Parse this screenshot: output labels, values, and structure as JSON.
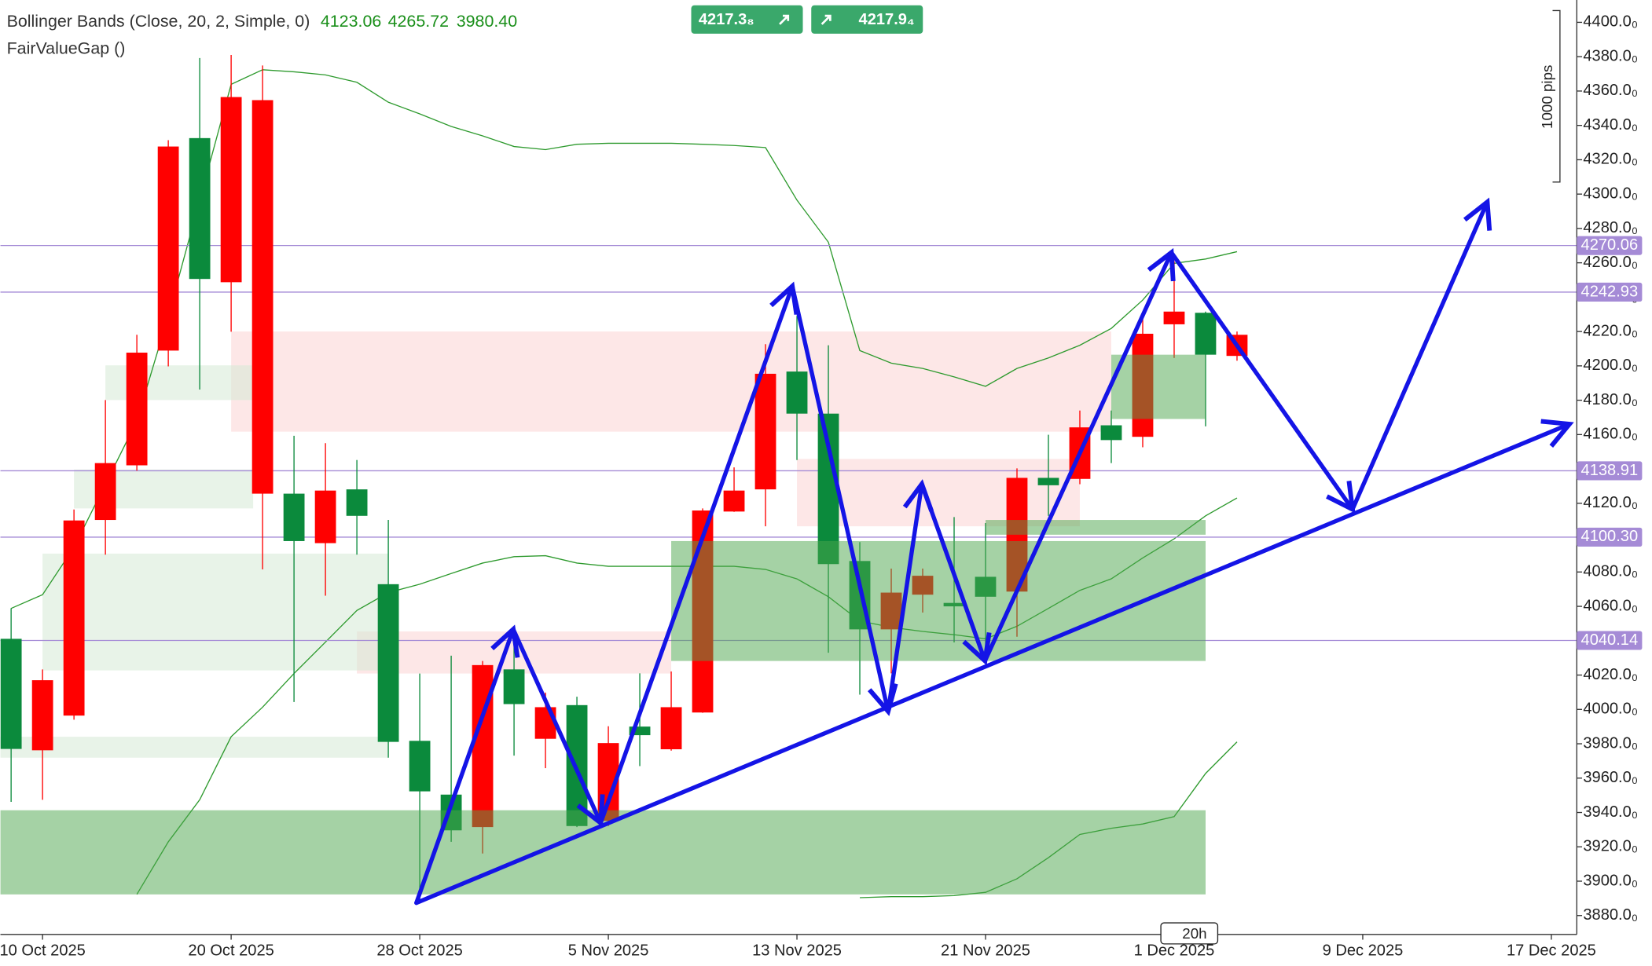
{
  "chart_data": {
    "type": "candlestick",
    "indicator_label": "Bollinger Bands (Close, 20, 2, Simple, 0)",
    "indicator_values": [
      "4123.06",
      "4265.72",
      "3980.40"
    ],
    "indicator2_label": "FairValueGap ()",
    "sell_price": "4217.3₈",
    "buy_price": "4217.9₄",
    "range_label": "1000 pips",
    "timeframe": "20h",
    "up_color": "#0b8a3c",
    "down_color": "#ff0000",
    "x": [
      -1,
      0,
      1,
      2,
      3,
      4,
      5,
      6,
      7,
      8,
      9,
      10,
      11,
      12,
      13,
      14,
      15,
      16,
      17,
      18,
      19,
      20,
      21,
      22,
      23,
      24,
      25,
      26,
      27,
      28,
      29,
      30,
      31,
      32,
      33,
      34,
      35,
      36,
      37,
      38
    ],
    "open": [
      3977,
      4017,
      4110,
      4143.4,
      4207.7,
      4327.7,
      4250.6,
      4356.5,
      4354.7,
      4098.0,
      4127.4,
      4112.7,
      3981.1,
      3952.3,
      3929.6,
      4025.8,
      4003.1,
      4001.3,
      3932.1,
      3980.4,
      3985,
      4001.3,
      4115.8,
      4127.4,
      4195.4,
      4172.2,
      4084.6,
      4046.6,
      4068.0,
      4077.8,
      4060,
      4065.6,
      4134.8,
      4130.5,
      4164.2,
      4156.8,
      4218.7,
      4231.6,
      4206.5,
      4218.1
    ],
    "high": [
      4058.9,
      4023.3,
      4116.4,
      4180.1,
      4218.1,
      4331.4,
      4379.2,
      4381,
      4374.9,
      4159.3,
      4155,
      4145.2,
      4110.3,
      4020.9,
      4031.3,
      4028.2,
      4045.4,
      4009.8,
      4007.4,
      3990.2,
      4021,
      4022.1,
      4117,
      4140.9,
      4212.6,
      4229.1,
      4212,
      4097.4,
      4082,
      4082,
      4112,
      4108.5,
      4140.3,
      4159.9,
      4174,
      4174,
      4229.1,
      4261,
      4231.6,
      4220
    ],
    "low": [
      3946.2,
      3947.4,
      3994,
      4090.1,
      4139,
      4199.7,
      4186.2,
      4219.9,
      4081.5,
      4004.3,
      4066.2,
      4090.1,
      3971.9,
      3887.3,
      3922.9,
      3916.1,
      3973.1,
      3965.8,
      3931.5,
      3932.1,
      3967,
      3976,
      3998,
      4115,
      4106.6,
      4145.2,
      4033,
      4008.6,
      4021,
      4056.4,
      4039,
      4031.9,
      4042.3,
      4112.7,
      4131.1,
      4143.4,
      4152.6,
      4204.6,
      4164.8,
      4203
    ],
    "close": [
      4041.1,
      3976.2,
      3996.4,
      4110.3,
      4142.1,
      4208.9,
      4332.6,
      4248.7,
      4125.6,
      4125.6,
      4096.8,
      4128.1,
      4072.9,
      3981.7,
      3950.4,
      3931.5,
      4023.3,
      3982.9,
      4002.5,
      3935.1,
      3990,
      3976.8,
      3998.2,
      4115.2,
      4128.1,
      4196.7,
      4172.2,
      4086.4,
      4046.6,
      4066.8,
      4062,
      4077.2,
      4068.6,
      4134.8,
      4134.2,
      4165.4,
      4158.7,
      4224.2,
      4230.9,
      4205.8
    ],
    "series": [
      {
        "color": "#2e9a2e",
        "values": [
          4058.8,
          4066.8,
          4094.4,
          4131.1,
          4167.9,
          4229.1,
          4296.5,
          4363.9,
          4372.4,
          4371.2,
          4369.4,
          4365.1,
          4353.5,
          4346.7,
          4339.4,
          4333.9,
          4327.7,
          4325.9,
          4329.0,
          4329.6,
          4329.6,
          4329.6,
          4329.0,
          4328.3,
          4327.1,
          4296.5,
          4272.0,
          4208.9,
          4201.6,
          4198.5,
          4193.6,
          4188.1,
          4198.5,
          4204.6,
          4212.0,
          4221.8,
          4238.3,
          4259.7,
          4262.2,
          4266.5
        ]
      },
      {
        "color": "#2e9a2e",
        "values": [
          null,
          null,
          null,
          null,
          3892.3,
          3922.9,
          3947.4,
          3984.1,
          4001.3,
          4020.9,
          4039.2,
          4057.6,
          4068.0,
          4072.9,
          4079.1,
          4085.2,
          4088.9,
          4089.5,
          4085.2,
          4083.3,
          4083.3,
          4083.3,
          4083.3,
          4083.3,
          4081.5,
          4076.0,
          4065.6,
          4051.5,
          4047.8,
          4045.4,
          4043.5,
          4041.1,
          4048.4,
          4058.8,
          4069.3,
          4076.0,
          4088.2,
          4099.3,
          4112.7,
          4123.1
        ]
      },
      {
        "color": "#2e9a2e",
        "values": [
          null,
          null,
          null,
          null,
          null,
          null,
          null,
          null,
          null,
          null,
          null,
          null,
          null,
          null,
          null,
          null,
          null,
          null,
          null,
          null,
          null,
          null,
          null,
          null,
          null,
          null,
          null,
          3890.4,
          3891.0,
          3891.0,
          3891.6,
          3893.5,
          3901.4,
          3913.7,
          3927.2,
          3930.8,
          3933.3,
          3937.6,
          3962.7,
          3981.1
        ]
      }
    ],
    "zones": [
      {
        "x": [
          6,
          34
        ],
        "y": [
          4161.7,
          4220.0
        ],
        "color": "#fbd3d3"
      },
      {
        "x": [
          10,
          20
        ],
        "y": [
          4020.9,
          4045.4
        ],
        "color": "#fbd3d3"
      },
      {
        "x": [
          24,
          33
        ],
        "y": [
          4106.6,
          4145.8
        ],
        "color": "#fbd3d3"
      },
      {
        "x": [
          2,
          6.7
        ],
        "y": [
          4180.1,
          4200.3
        ],
        "color": "#d6ead6"
      },
      {
        "x": [
          1,
          6.7
        ],
        "y": [
          4117.0,
          4139.7
        ],
        "color": "#d6ead6"
      },
      {
        "x": [
          0,
          11
        ],
        "y": [
          4022.7,
          4090.7
        ],
        "color": "#d6ead6"
      },
      {
        "x": [
          -1.34,
          11
        ],
        "y": [
          3971.9,
          3984.1
        ],
        "color": "#d6ead6"
      },
      {
        "x": [
          -1.34,
          37
        ],
        "y": [
          3892.3,
          3941.3
        ],
        "color": "#4ca64c"
      },
      {
        "x": [
          20,
          37
        ],
        "y": [
          4028.2,
          4098.0
        ],
        "color": "#4ca64c"
      },
      {
        "x": [
          30,
          37
        ],
        "y": [
          4101.7,
          4110.3
        ],
        "color": "#4ca64c"
      },
      {
        "x": [
          34,
          37
        ],
        "y": [
          4169.1,
          4206.5
        ],
        "color": "#4ca64c"
      }
    ],
    "hlines": [
      4270.06,
      4242.93,
      4138.91,
      {
        "value": 4100.3,
        "label": "4100.30"
      },
      4040.14
    ],
    "hline_color": "#a58bd6",
    "xlim": [
      -1.34,
      48.81
    ],
    "ylim": [
      3869,
      4413
    ],
    "xticks": [
      {
        "value": 0,
        "label": "10 Oct 2025"
      },
      {
        "value": 6,
        "label": "20 Oct 2025"
      },
      {
        "value": 12,
        "label": "28 Oct 2025"
      },
      {
        "value": 18,
        "label": "5 Nov 2025"
      },
      {
        "value": 24,
        "label": "13 Nov 2025"
      },
      {
        "value": 30,
        "label": "21 Nov 2025"
      },
      {
        "value": 36,
        "label": "1 Dec 2025"
      },
      {
        "value": 42,
        "label": "9 Dec 2025"
      },
      {
        "value": 48,
        "label": "17 Dec 2025"
      }
    ],
    "yticks": [
      {
        "value": 4400,
        "label": "4400.0₀"
      },
      {
        "value": 4380,
        "label": "4380.0₀"
      },
      {
        "value": 4360,
        "label": "4360.0₀"
      },
      {
        "value": 4340,
        "label": "4340.0₀"
      },
      {
        "value": 4320,
        "label": "4320.0₀"
      },
      {
        "value": 4300,
        "label": "4300.0₀"
      },
      {
        "value": 4280,
        "label": "4280.0₀"
      },
      {
        "value": 4260,
        "label": "4260.0₀"
      },
      {
        "value": 4240,
        "label": "4240.0₀"
      },
      {
        "value": 4220,
        "label": "4220.0₀"
      },
      {
        "value": 4200,
        "label": "4200.0₀"
      },
      {
        "value": 4180,
        "label": "4180.0₀"
      },
      {
        "value": 4160,
        "label": "4160.0₀"
      },
      {
        "value": 4140,
        "label": "4140.0₀"
      },
      {
        "value": 4120,
        "label": "4120.0₀"
      },
      {
        "value": 4100,
        "label": "4100.0₀"
      },
      {
        "value": 4080,
        "label": "4080.0₀"
      },
      {
        "value": 4060,
        "label": "4060.0₀"
      },
      {
        "value": 4040,
        "label": "4040.0₀"
      },
      {
        "value": 4020,
        "label": "4020.0₀"
      },
      {
        "value": 4000,
        "label": "4000.0₀"
      },
      {
        "value": 3980,
        "label": "3980.0₀"
      },
      {
        "value": 3960,
        "label": "3960.0₀"
      },
      {
        "value": 3940,
        "label": "3940.0₀"
      },
      {
        "value": 3920,
        "label": "3920.0₀"
      },
      {
        "value": 3900,
        "label": "3900.0₀"
      },
      {
        "value": 3880,
        "label": "3880.0₀"
      }
    ]
  }
}
